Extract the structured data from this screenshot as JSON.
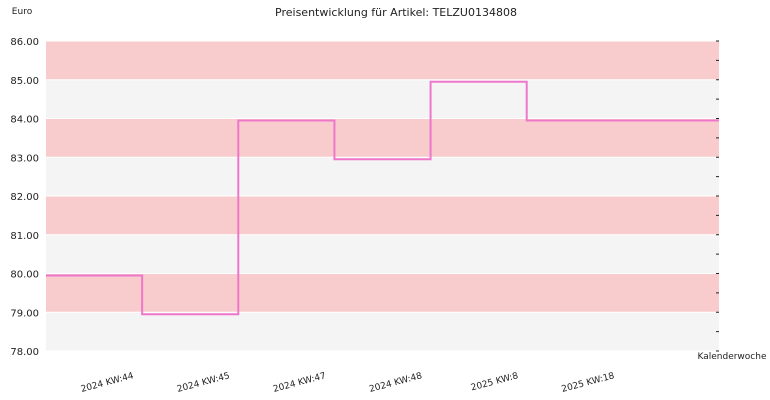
{
  "chart_data": {
    "type": "line",
    "title": "Preisentwicklung für Artikel: TELZU0134808",
    "ylabel": "Euro",
    "xlabel": "Kalenderwoche",
    "ylim": [
      78.0,
      86.0
    ],
    "y_ticks": [
      "78.00",
      "79.00",
      "80.00",
      "81.00",
      "82.00",
      "83.00",
      "84.00",
      "85.00",
      "86.00"
    ],
    "categories": [
      "2024 KW:44",
      "2024 KW:45",
      "2024 KW:47",
      "2024 KW:48",
      "2025 KW:8",
      "2025 KW:18"
    ],
    "step": true,
    "series": [
      {
        "values": [
          79.95,
          78.95,
          83.95,
          82.95,
          84.95,
          83.95
        ]
      }
    ],
    "grid": true,
    "band_colors": [
      "#f8cccc",
      "#f4f4f4"
    ],
    "line_color": "#ee77cc"
  }
}
